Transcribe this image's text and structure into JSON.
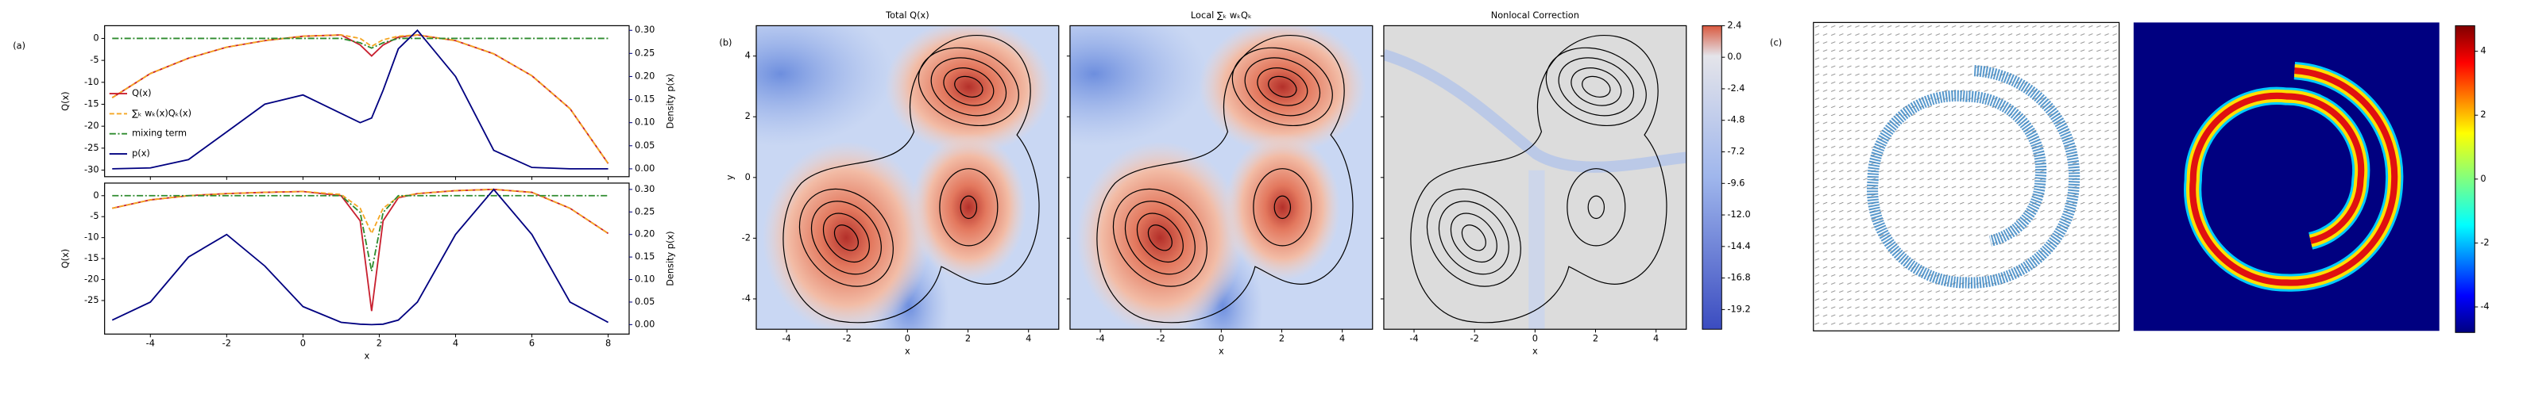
{
  "chart_data": [
    {
      "type": "line",
      "panel_label": "(a)",
      "ylabel": "Q(x)",
      "y2label": "Density p(x)",
      "y2color": "#000080",
      "xlim": [
        -5.2,
        8.55
      ],
      "xticks": [
        -4,
        -2,
        0,
        2,
        4,
        6,
        8
      ],
      "xticklabels": false,
      "ylim": [
        -31.5,
        2.9
      ],
      "yticks": [
        0,
        -5,
        -10,
        -15,
        -20,
        -25,
        -30
      ],
      "y2lim": [
        -0.017,
        0.31
      ],
      "y2ticks": [
        {
          "value": 0,
          "label": "0.00"
        },
        0.05,
        {
          "value": 0.1,
          "label": "0.10"
        },
        0.15,
        {
          "value": 0.2,
          "label": "0.20"
        },
        0.25,
        {
          "value": 0.3,
          "label": "0.30"
        }
      ],
      "legend": "center left",
      "x": [
        -5,
        -4,
        -3,
        -2,
        -1,
        0,
        1,
        1.5,
        1.8,
        2.1,
        2.5,
        3,
        4,
        5,
        6,
        7,
        8
      ],
      "series": [
        {
          "name": "Q(x)",
          "color": "#c8202f",
          "linestyle": "solid",
          "values": [
            -13.5,
            -8,
            -4.5,
            -2,
            -0.5,
            0.5,
            0.8,
            -1.5,
            -4,
            -1.5,
            0.3,
            0.8,
            -0.5,
            -3.5,
            -8.5,
            -16,
            -28.5
          ]
        },
        {
          "name": "∑ₖ wₖ(x)Qₖ(x)",
          "color": "#f5a623",
          "linestyle": "dashed",
          "values": [
            -13.5,
            -8,
            -4.5,
            -2,
            -0.5,
            0.5,
            0.8,
            0,
            -1.8,
            -0.3,
            0.5,
            0.8,
            -0.5,
            -3.5,
            -8.5,
            -16,
            -28.5
          ]
        },
        {
          "name": "mixing term",
          "color": "#2e8b2e",
          "linestyle": "dashdot",
          "values": [
            0,
            0,
            0,
            0,
            0,
            0,
            0,
            -1,
            -2.2,
            -1,
            0,
            0,
            0,
            0,
            0,
            0,
            0
          ]
        },
        {
          "name": "p(x)",
          "color": "#000080",
          "linestyle": "solid",
          "axis": "y2",
          "values": [
            0,
            0.002,
            0.02,
            0.08,
            0.14,
            0.16,
            0.12,
            0.1,
            0.11,
            0.17,
            0.26,
            0.3,
            0.2,
            0.04,
            0.003,
            0,
            0
          ]
        }
      ]
    },
    {
      "type": "line",
      "xlabel": "x",
      "ylabel": "Q(x)",
      "y2label": "Density p(x)",
      "y2color": "#000080",
      "xlim": [
        -5.2,
        8.55
      ],
      "xticks": [
        -4,
        -2,
        0,
        2,
        4,
        6,
        8
      ],
      "ylim": [
        -33,
        3
      ],
      "yticks": [
        0,
        -5,
        -10,
        -15,
        -20,
        -25
      ],
      "y2lim": [
        -0.021,
        0.314
      ],
      "y2ticks": [
        {
          "value": 0,
          "label": "0.00"
        },
        0.05,
        {
          "value": 0.1,
          "label": "0.10"
        },
        0.15,
        {
          "value": 0.2,
          "label": "0.20"
        },
        0.25,
        {
          "value": 0.3,
          "label": "0.30"
        }
      ],
      "x": [
        -5,
        -4,
        -3,
        -2,
        -1,
        0,
        1,
        1.5,
        1.8,
        2.1,
        2.5,
        3,
        4,
        5,
        6,
        7,
        8
      ],
      "series": [
        {
          "color": "#c8202f",
          "linestyle": "solid",
          "values": [
            -3,
            -1,
            0,
            0.5,
            0.8,
            1,
            0,
            -6,
            -27.5,
            -6,
            -0.5,
            0.5,
            1.2,
            1.5,
            0.8,
            -3,
            -9
          ]
        },
        {
          "color": "#f5a623",
          "linestyle": "dashed",
          "values": [
            -3,
            -1,
            0,
            0.5,
            0.8,
            1,
            0.3,
            -3,
            -9,
            -3,
            -0.3,
            0.5,
            1.2,
            1.5,
            0.8,
            -3,
            -9
          ]
        },
        {
          "color": "#2e8b2e",
          "linestyle": "dashdot",
          "values": [
            0,
            0,
            0,
            0,
            0,
            0,
            0,
            -4,
            -18,
            -4,
            0,
            0,
            0,
            0,
            0,
            0,
            0
          ]
        },
        {
          "color": "#000080",
          "linestyle": "solid",
          "axis": "y2",
          "values": [
            0.01,
            0.05,
            0.15,
            0.2,
            0.13,
            0.04,
            0.005,
            0.001,
            0,
            0.001,
            0.01,
            0.05,
            0.2,
            0.3,
            0.2,
            0.05,
            0.005
          ]
        }
      ]
    },
    {
      "type": "heatmap",
      "panel_label": "(b)",
      "title": "Total Q(x)",
      "xlabel": "x",
      "ylabel": "y",
      "xlim": [
        -5,
        5
      ],
      "xticks": [
        -4,
        -2,
        0,
        2,
        4
      ],
      "ylim": [
        -5,
        5
      ],
      "yticks": [
        -4,
        -2,
        0,
        2,
        4
      ]
    },
    {
      "type": "heatmap",
      "title": "Local ∑ₖ wₖQₖ",
      "xlabel": "x",
      "xlim": [
        -5,
        5
      ],
      "xticks": [
        -4,
        -2,
        0,
        2,
        4
      ],
      "ylim": [
        -5,
        5
      ],
      "yticks": [
        -4,
        -2,
        0,
        2,
        4
      ],
      "yticklabels": false
    },
    {
      "type": "heatmap",
      "title": "Nonlocal Correction",
      "xlabel": "x",
      "xlim": [
        -5,
        5
      ],
      "xticks": [
        -4,
        -2,
        0,
        2,
        4
      ],
      "ylim": [
        -5,
        5
      ],
      "yticks": [
        -4,
        -2,
        0,
        2,
        4
      ],
      "yticklabels": false,
      "colorbar": {
        "cmap": "coolwarm",
        "lim": [
          -20.7,
          2.4
        ],
        "ticks": [
          2.4,
          {
            "value": 0,
            "label": "0.0"
          },
          -2.4,
          -4.8,
          -7.2,
          -9.6,
          {
            "value": -12,
            "label": "-12.0"
          },
          -14.4,
          -16.8,
          -19.2
        ]
      }
    },
    {
      "type": "quiver",
      "panel_label": "(c)"
    },
    {
      "type": "heatmap",
      "colorbar": {
        "cmap": "jet",
        "lim": [
          -4.8,
          4.8
        ],
        "ticks": [
          4,
          2,
          0,
          -2,
          -4
        ]
      }
    }
  ]
}
